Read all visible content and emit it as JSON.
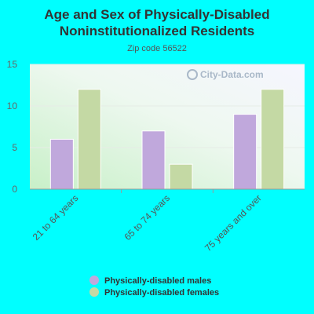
{
  "chart_data": {
    "type": "bar",
    "title_lines": [
      "Age and Sex of Physically-Disabled",
      "Noninstitutionalized Residents"
    ],
    "subtitle": "Zip code 56522",
    "categories": [
      "21 to 64 years",
      "65 to 74 years",
      "75 years and over"
    ],
    "series": [
      {
        "name": "Physically-disabled males",
        "values": [
          6,
          7,
          9
        ],
        "color": "#c0a8dc"
      },
      {
        "name": "Physically-disabled females",
        "values": [
          12,
          3,
          12
        ],
        "color": "#c4d9a4"
      }
    ],
    "ylim": [
      0,
      15
    ],
    "yticks": [
      0,
      5,
      10,
      15
    ],
    "grid": true,
    "legend_position": "bottom",
    "watermark": "City-Data.com"
  },
  "colors": {
    "page_background": "#00ffff",
    "axis": "#999999"
  }
}
